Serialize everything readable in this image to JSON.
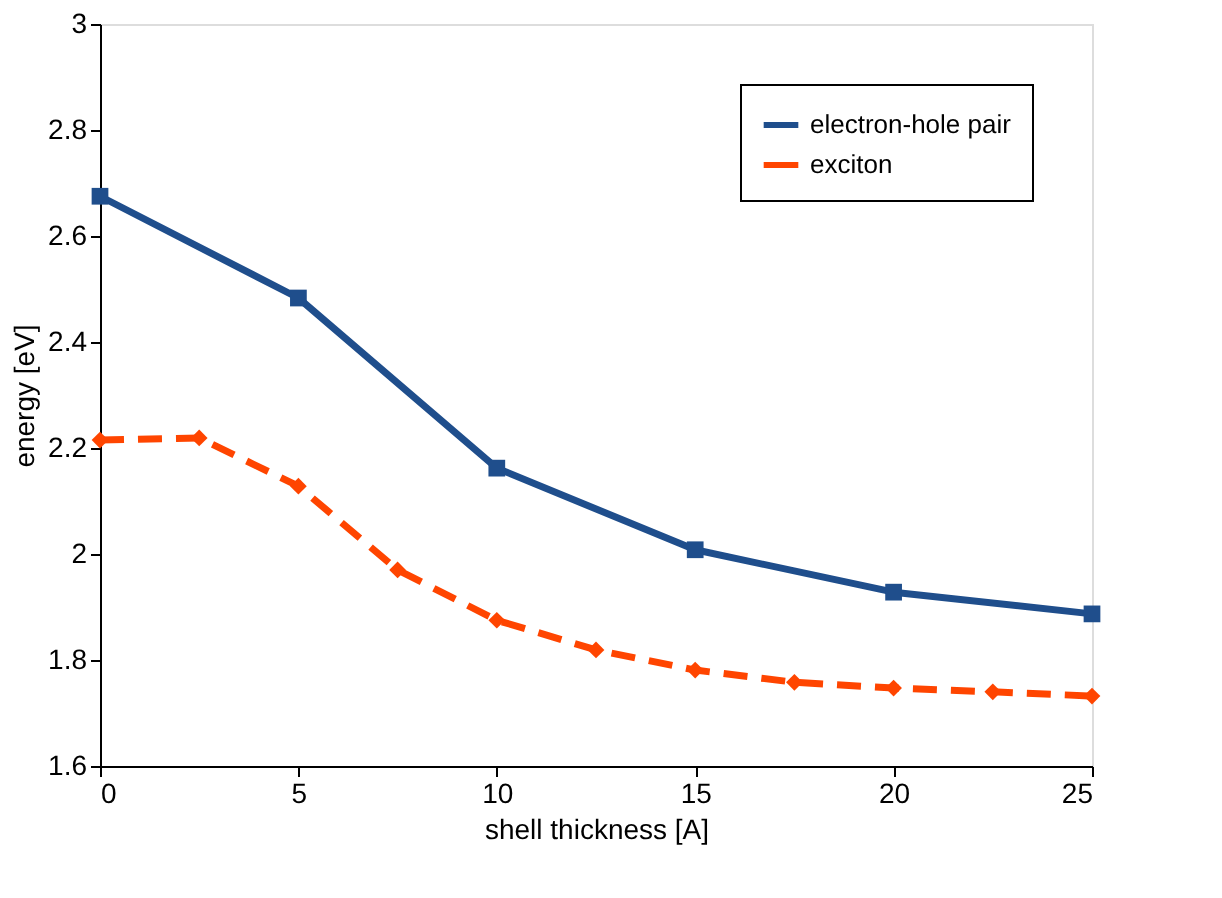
{
  "chart_data": {
    "type": "line",
    "xlabel": "shell thickness [A]",
    "ylabel": "energy [eV]",
    "xlim": [
      0,
      25
    ],
    "xticks": [
      0,
      5,
      10,
      15,
      20,
      25
    ],
    "ylim": [
      1.6,
      3
    ],
    "yticks": [
      1.6,
      1.8,
      2,
      2.2,
      2.4,
      2.6,
      2.8,
      3
    ],
    "grid": false,
    "legend": "top right",
    "series": [
      {
        "name": "electron-hole pair",
        "color": "#1f4e8c",
        "marker": "square",
        "line_style": "solid",
        "x": [
          0,
          5,
          10,
          15,
          20,
          25
        ],
        "values": [
          2.675,
          2.483,
          2.162,
          2.008,
          1.928,
          1.887
        ]
      },
      {
        "name": "exciton",
        "color": "#ff4500",
        "marker": "diamond",
        "line_style": "dashed",
        "x": [
          0,
          2.5,
          5,
          7.5,
          10,
          12.5,
          15,
          17.5,
          20,
          22.5,
          25
        ],
        "values": [
          2.215,
          2.219,
          2.128,
          1.97,
          1.875,
          1.819,
          1.781,
          1.758,
          1.747,
          1.74,
          1.732
        ]
      }
    ]
  }
}
